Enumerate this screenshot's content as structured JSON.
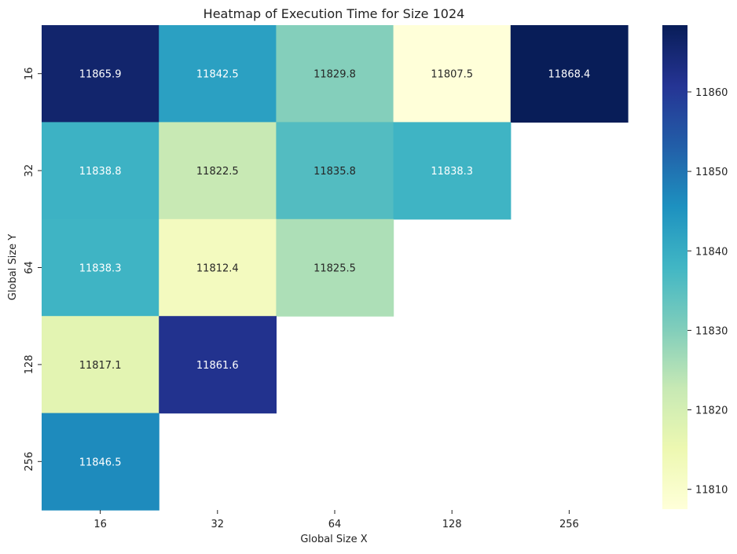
{
  "chart_data": {
    "type": "heatmap",
    "title": "Heatmap of Execution Time for Size 1024",
    "xlabel": "Global Size X",
    "ylabel": "Global Size Y",
    "x_categories": [
      "16",
      "32",
      "64",
      "128",
      "256"
    ],
    "y_categories": [
      "16",
      "32",
      "64",
      "128",
      "256"
    ],
    "values": [
      [
        11865.9,
        11842.5,
        11829.8,
        11807.5,
        11868.4
      ],
      [
        11838.8,
        11822.5,
        11835.8,
        11838.3,
        null
      ],
      [
        11838.3,
        11812.4,
        11825.5,
        null,
        null
      ],
      [
        11817.1,
        11861.6,
        null,
        null,
        null
      ],
      [
        11846.5,
        null,
        null,
        null,
        null
      ]
    ],
    "value_format": "0.1f",
    "colormap": "YlGnBu",
    "color_range": [
      11807.5,
      11868.4
    ],
    "colorbar_ticks": [
      11810,
      11820,
      11830,
      11840,
      11850,
      11860
    ],
    "colors": {
      "text_light": "#ffffff",
      "text_dark": "#262626",
      "axis_text": "#222222"
    }
  }
}
